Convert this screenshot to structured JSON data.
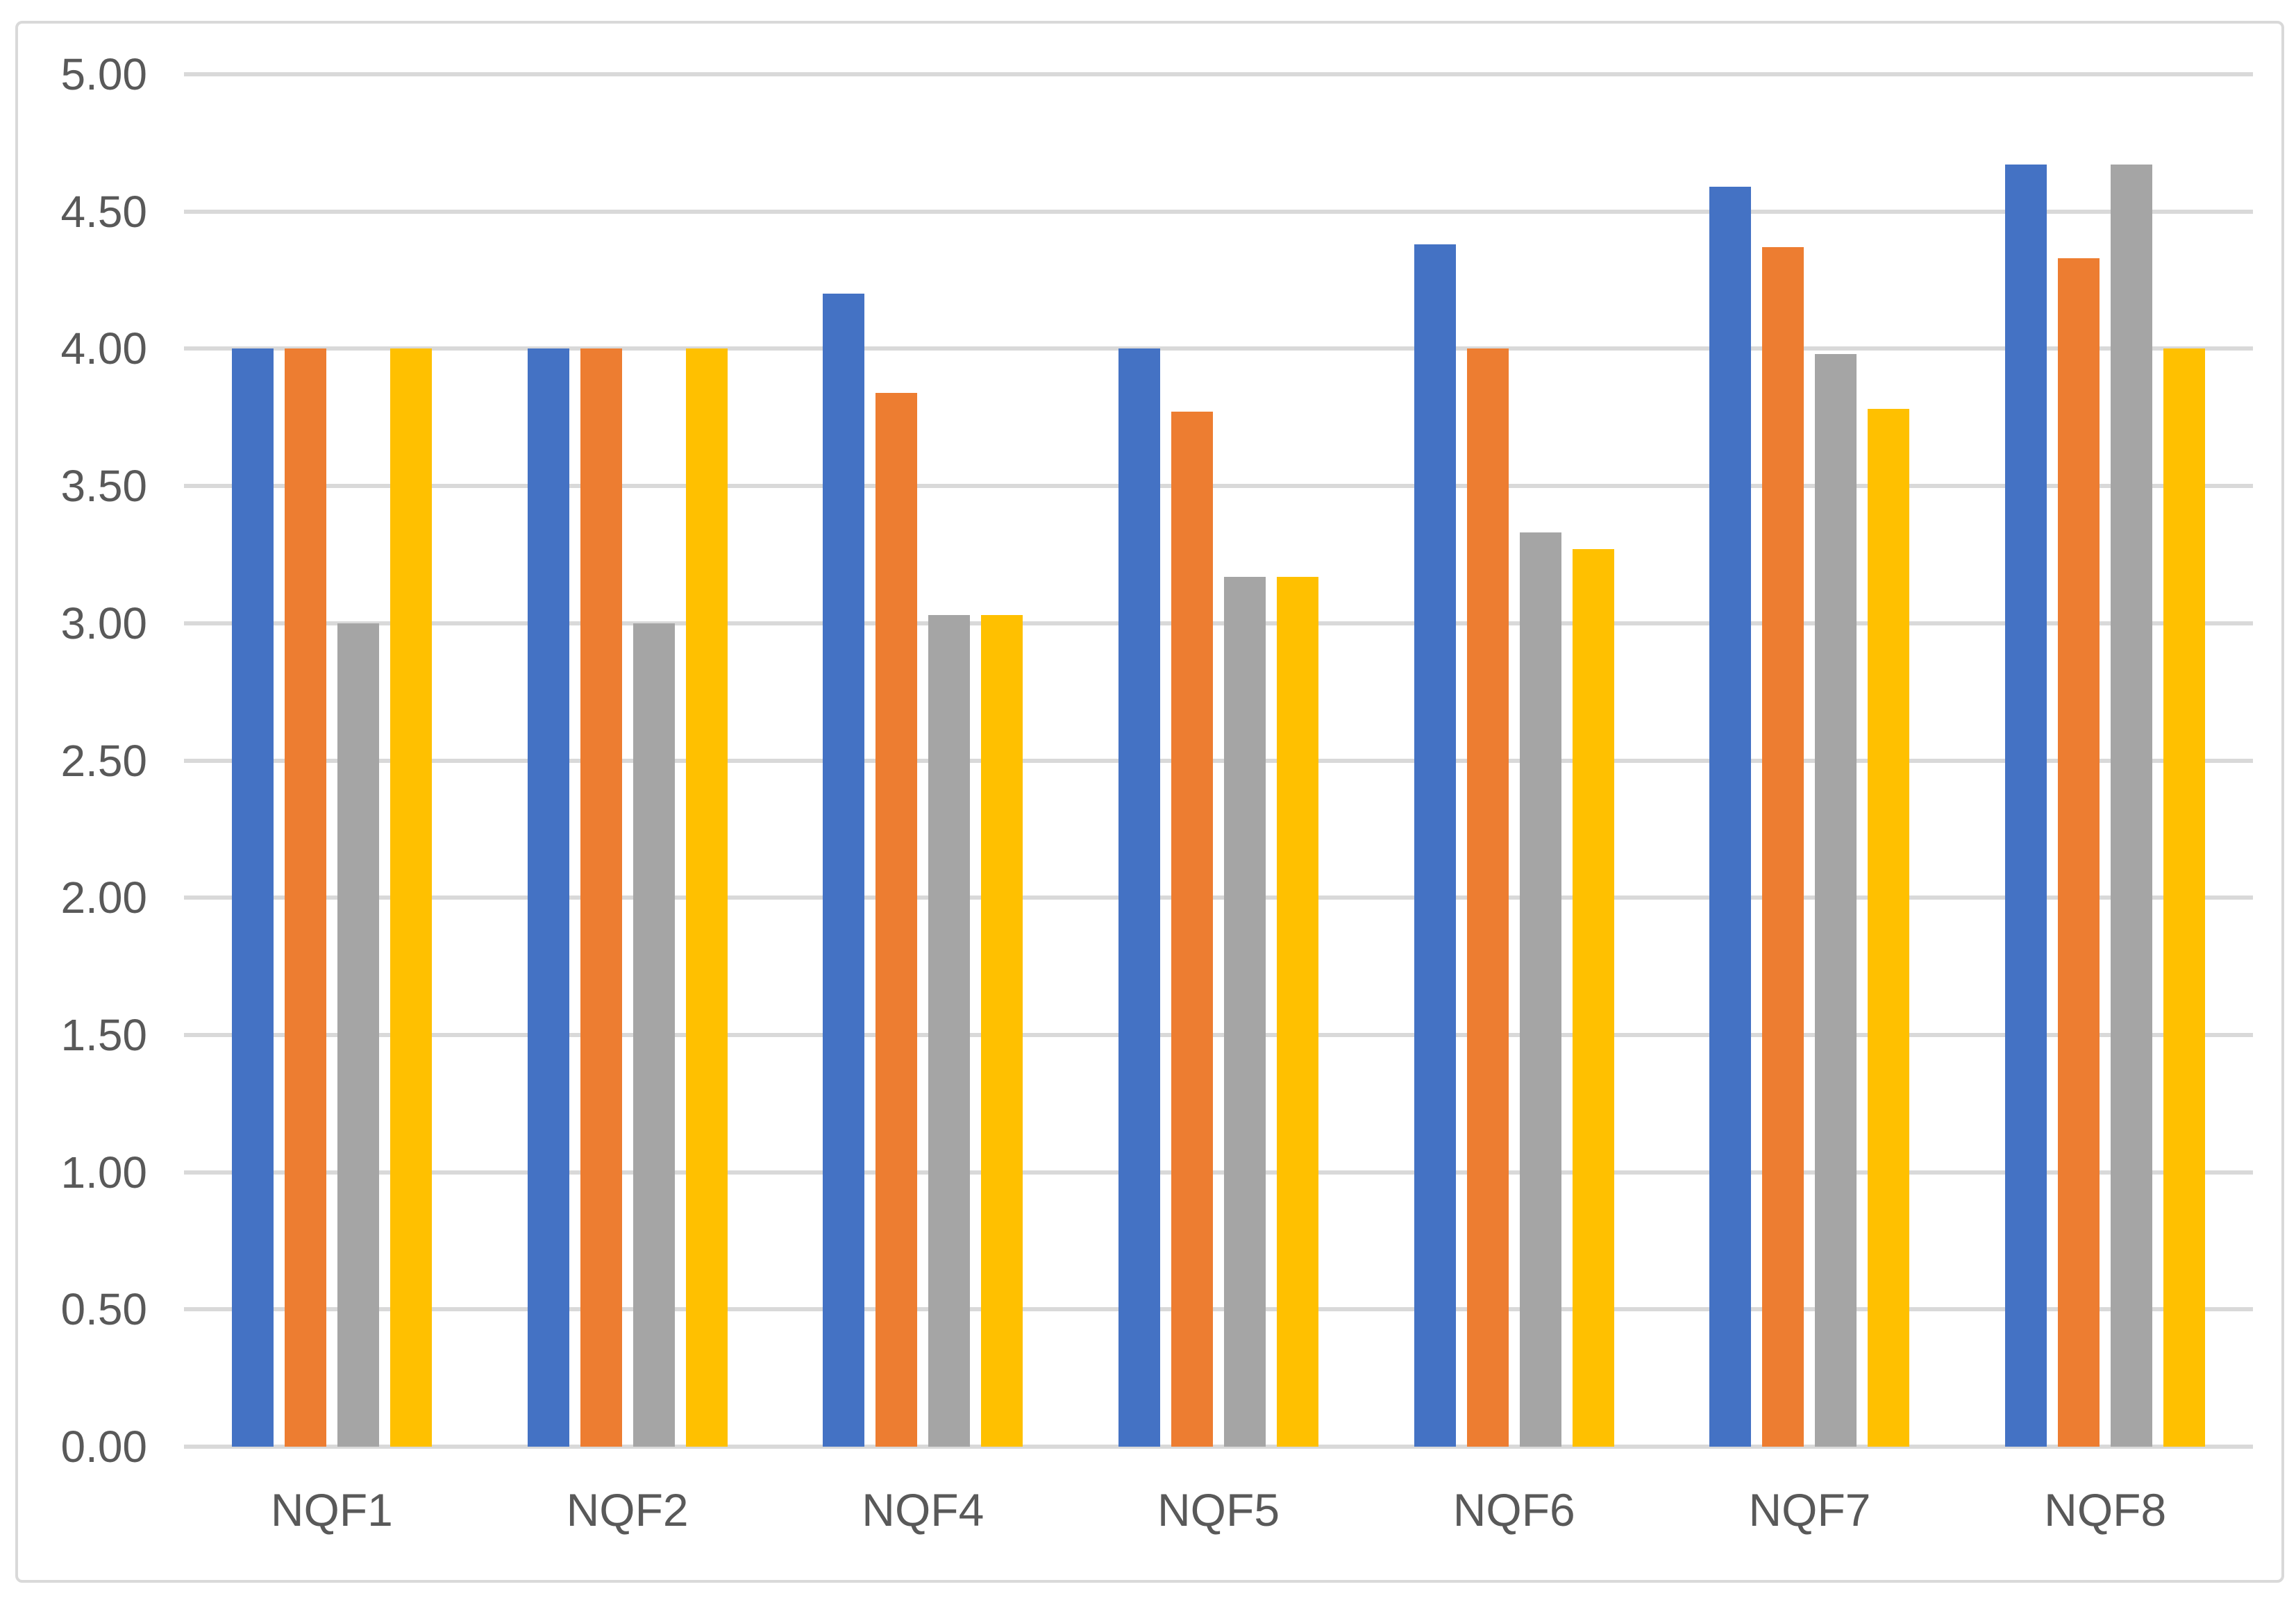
{
  "chart_data": {
    "type": "bar",
    "title": "",
    "xlabel": "",
    "ylabel": "",
    "categories": [
      "NQF1",
      "NQF2",
      "NQF4",
      "NQF5",
      "NQF6",
      "NQF7",
      "NQF8"
    ],
    "series": [
      {
        "name": "blue",
        "color": "#4472C4",
        "values": [
          4.0,
          4.0,
          4.2,
          4.0,
          4.38,
          4.59,
          4.67
        ]
      },
      {
        "name": "orange",
        "color": "#ED7D31",
        "values": [
          4.0,
          4.0,
          3.84,
          3.77,
          4.0,
          4.37,
          4.33
        ]
      },
      {
        "name": "gray",
        "color": "#A5A5A5",
        "values": [
          3.0,
          3.0,
          3.03,
          3.17,
          3.33,
          3.98,
          4.67
        ]
      },
      {
        "name": "yellow",
        "color": "#FFC000",
        "values": [
          4.0,
          4.0,
          3.03,
          3.17,
          3.27,
          3.78,
          4.0
        ]
      }
    ],
    "ylim": [
      0,
      5
    ],
    "ytick_step": 0.5,
    "ytick_labels": [
      "0.00",
      "0.50",
      "1.00",
      "1.50",
      "2.00",
      "2.50",
      "3.00",
      "3.50",
      "4.00",
      "4.50",
      "5.00"
    ],
    "grid": true,
    "legend": false
  },
  "colors": {
    "background": "#FFFFFF",
    "frame_border": "#D9D9D9",
    "gridline": "#D9D9D9",
    "axis_line": "#D9D9D9",
    "axis_text": "#595959"
  }
}
